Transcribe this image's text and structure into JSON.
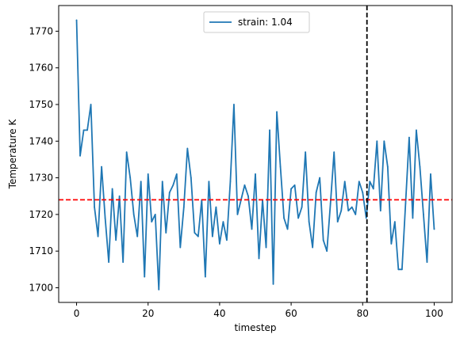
{
  "chart_data": {
    "type": "line",
    "xlabel": "timestep",
    "ylabel": "Temperature K",
    "xlim": [
      -5,
      105
    ],
    "ylim": [
      1696,
      1777
    ],
    "xticks": [
      0,
      20,
      40,
      60,
      80,
      100
    ],
    "yticks": [
      1700,
      1710,
      1720,
      1730,
      1740,
      1750,
      1760,
      1770
    ],
    "grid": false,
    "legend_position": "upper-center",
    "series": [
      {
        "name": "strain: 1.04",
        "color": "#1f77b4",
        "x": [
          0,
          1,
          2,
          3,
          4,
          5,
          6,
          7,
          8,
          9,
          10,
          11,
          12,
          13,
          14,
          15,
          16,
          17,
          18,
          19,
          20,
          21,
          22,
          23,
          24,
          25,
          26,
          27,
          28,
          29,
          30,
          31,
          32,
          33,
          34,
          35,
          36,
          37,
          38,
          39,
          40,
          41,
          42,
          43,
          44,
          45,
          46,
          47,
          48,
          49,
          50,
          51,
          52,
          53,
          54,
          55,
          56,
          57,
          58,
          59,
          60,
          61,
          62,
          63,
          64,
          65,
          66,
          67,
          68,
          69,
          70,
          71,
          72,
          73,
          74,
          75,
          76,
          77,
          78,
          79,
          80,
          81,
          82,
          83,
          84,
          85,
          86,
          87,
          88,
          89,
          90,
          91,
          92,
          93,
          94,
          95,
          96,
          97,
          98,
          99,
          100
        ],
        "y": [
          1773,
          1736,
          1743,
          1743,
          1750,
          1722,
          1714,
          1733,
          1719,
          1707,
          1727,
          1713,
          1725,
          1707,
          1737,
          1730,
          1720,
          1714,
          1729,
          1703,
          1731,
          1718,
          1720,
          1699.5,
          1729,
          1715,
          1726,
          1728,
          1731,
          1711,
          1722,
          1738,
          1730,
          1715,
          1714,
          1724,
          1703,
          1729,
          1714,
          1722,
          1712,
          1718,
          1713,
          1729,
          1750,
          1720,
          1724,
          1728,
          1725,
          1716,
          1731,
          1708,
          1724,
          1711,
          1743,
          1701,
          1748,
          1733,
          1719,
          1716,
          1727,
          1728,
          1719,
          1722,
          1737,
          1718,
          1711,
          1726,
          1730,
          1713,
          1710,
          1723,
          1737,
          1718,
          1721,
          1729,
          1721,
          1722,
          1720,
          1729,
          1726,
          1719,
          1729,
          1727,
          1740,
          1721,
          1740,
          1733,
          1712,
          1718,
          1705,
          1705,
          1723,
          1741,
          1719,
          1743,
          1733,
          1720,
          1707,
          1731,
          1716
        ]
      }
    ],
    "reference_lines": [
      {
        "orientation": "horizontal",
        "value": 1724,
        "color": "#ff0000",
        "style": "dashed"
      },
      {
        "orientation": "vertical",
        "value": 81.2,
        "color": "#000000",
        "style": "dashed"
      }
    ]
  }
}
